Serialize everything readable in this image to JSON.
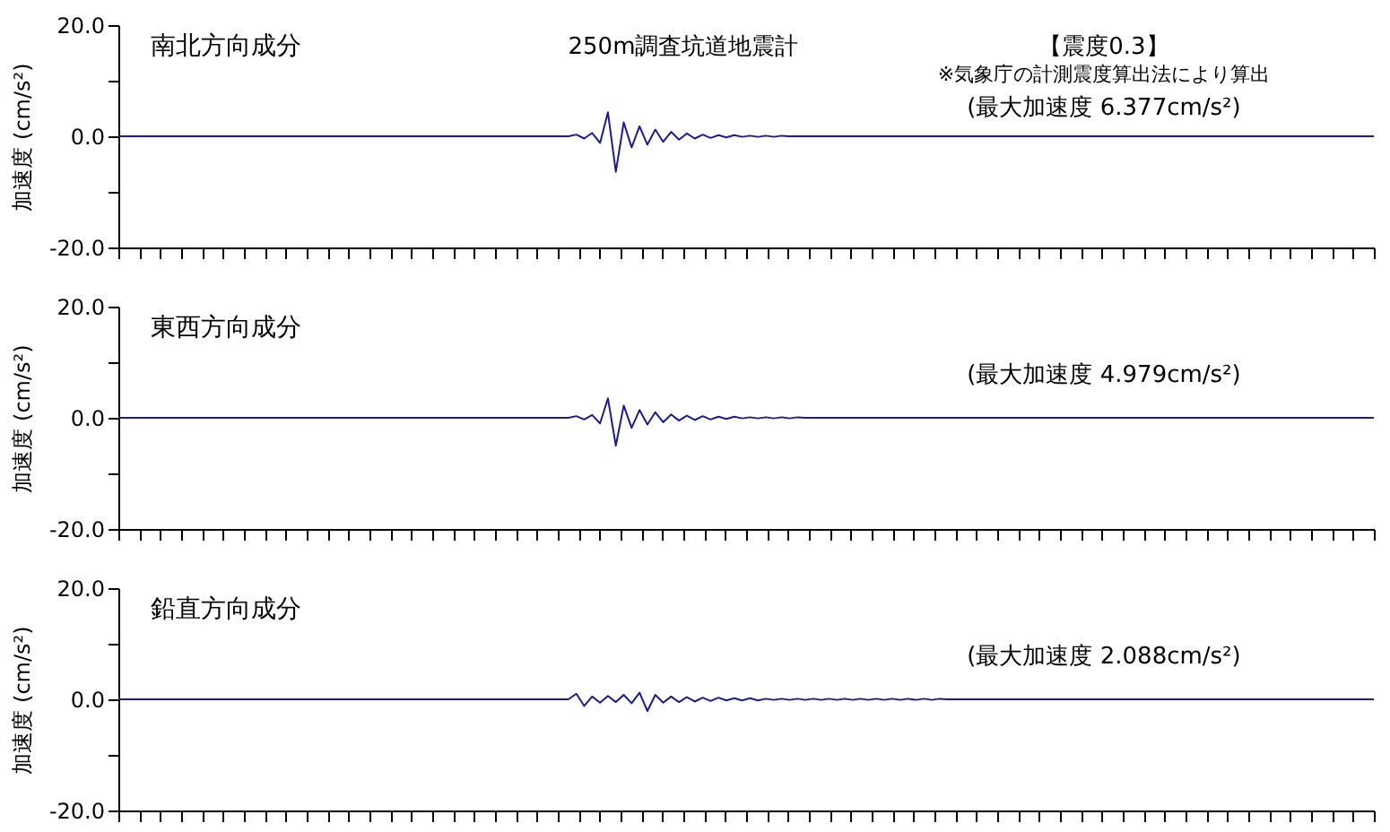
{
  "chart_data": [
    {
      "type": "line",
      "title": "南北方向成分",
      "ylabel": "加速度 (cm/s²)",
      "ylim": [
        -20,
        20
      ],
      "yticks": [
        {
          "value": -20,
          "label": "-20.0"
        },
        {
          "value": -10,
          "label": null
        },
        {
          "value": 0,
          "label": "0.0"
        },
        {
          "value": 10,
          "label": null
        },
        {
          "value": 20,
          "label": "20.0"
        }
      ],
      "tick_labels": "y",
      "grid": false,
      "annotations": [
        "250m調査坑道地震計",
        "【震度0.3】",
        "※気象庁の計測震度算出法により算出",
        "(最大加速度 6.377cm/s²)"
      ],
      "categories": [
        null,
        null,
        null,
        null,
        null,
        null,
        null,
        null,
        null,
        null,
        null,
        null,
        null,
        null,
        null,
        null,
        null,
        null,
        null,
        null,
        null,
        null,
        null,
        null,
        null,
        null,
        null,
        null,
        null,
        null,
        null,
        null,
        null,
        null,
        null,
        null,
        null,
        null,
        null,
        null,
        null,
        null,
        null,
        null,
        null,
        null,
        null,
        null,
        null,
        null,
        null,
        null,
        null,
        null,
        null,
        null,
        null,
        null,
        null,
        null,
        null,
        null,
        null,
        null,
        null,
        null,
        null,
        null,
        null,
        null,
        null,
        null,
        null,
        null,
        null,
        null,
        null,
        null,
        null,
        null,
        null,
        null,
        null,
        null,
        null,
        null,
        null,
        null,
        null,
        null,
        null,
        null,
        null,
        null,
        null,
        null,
        null,
        null,
        null,
        null,
        null,
        null,
        null,
        null,
        null,
        null,
        null,
        null,
        null,
        null,
        null,
        null,
        null,
        null,
        null,
        null,
        null,
        null,
        null,
        null,
        null,
        null,
        null,
        null,
        null,
        null,
        null,
        null,
        null,
        null,
        null,
        null,
        null,
        null,
        null,
        null,
        null,
        null,
        null,
        null,
        null,
        null,
        null,
        null,
        null,
        null,
        null,
        null,
        null,
        null,
        null,
        null,
        null,
        null,
        null,
        null,
        null,
        null,
        null,
        null
      ],
      "series": [
        {
          "color": "#1c1c8c",
          "values": [
            0,
            0,
            0,
            0,
            0,
            0,
            0,
            0,
            0,
            0,
            0,
            0,
            0,
            0,
            0,
            0,
            0,
            0,
            0,
            0,
            0,
            0,
            0,
            0,
            0,
            0,
            0,
            0,
            0,
            0,
            0,
            0,
            0,
            0,
            0,
            0,
            0,
            0,
            0,
            0,
            0,
            0,
            0,
            0,
            0,
            0,
            0,
            0,
            0,
            0,
            0,
            0,
            0,
            0,
            0,
            0,
            0,
            0,
            0.3,
            -0.4,
            0.6,
            -1.2,
            4.3,
            -6.4,
            2.5,
            -2,
            1.8,
            -1.5,
            1.2,
            -1,
            0.8,
            -0.6,
            0.5,
            -0.4,
            0.3,
            -0.3,
            0.2,
            -0.2,
            0.2,
            -0.1,
            0.1,
            -0.1,
            0.1,
            -0.1,
            0.1,
            0,
            0,
            0,
            0,
            0,
            0,
            0,
            0,
            0,
            0,
            0,
            0,
            0,
            0,
            0,
            0,
            0,
            0,
            0,
            0,
            0,
            0,
            0,
            0,
            0,
            0,
            0,
            0,
            0,
            0,
            0,
            0,
            0,
            0,
            0,
            0,
            0,
            0,
            0,
            0,
            0,
            0,
            0,
            0,
            0,
            0,
            0,
            0,
            0,
            0,
            0,
            0,
            0,
            0,
            0,
            0,
            0,
            0,
            0,
            0,
            0,
            0,
            0,
            0,
            0,
            0,
            0,
            0,
            0,
            0,
            0,
            0,
            0,
            0,
            0
          ]
        }
      ]
    },
    {
      "type": "line",
      "title": "東西方向成分",
      "ylabel": "加速度 (cm/s²)",
      "ylim": [
        -20,
        20
      ],
      "yticks": [
        {
          "value": -20,
          "label": "-20.0"
        },
        {
          "value": -10,
          "label": null
        },
        {
          "value": 0,
          "label": "0.0"
        },
        {
          "value": 10,
          "label": null
        },
        {
          "value": 20,
          "label": "20.0"
        }
      ],
      "tick_labels": "y",
      "grid": false,
      "annotations": [
        "(最大加速度 4.979cm/s²)"
      ],
      "categories": [
        null,
        null,
        null,
        null,
        null,
        null,
        null,
        null,
        null,
        null,
        null,
        null,
        null,
        null,
        null,
        null,
        null,
        null,
        null,
        null,
        null,
        null,
        null,
        null,
        null,
        null,
        null,
        null,
        null,
        null,
        null,
        null,
        null,
        null,
        null,
        null,
        null,
        null,
        null,
        null,
        null,
        null,
        null,
        null,
        null,
        null,
        null,
        null,
        null,
        null,
        null,
        null,
        null,
        null,
        null,
        null,
        null,
        null,
        null,
        null,
        null,
        null,
        null,
        null,
        null,
        null,
        null,
        null,
        null,
        null,
        null,
        null,
        null,
        null,
        null,
        null,
        null,
        null,
        null,
        null,
        null,
        null,
        null,
        null,
        null,
        null,
        null,
        null,
        null,
        null,
        null,
        null,
        null,
        null,
        null,
        null,
        null,
        null,
        null,
        null,
        null,
        null,
        null,
        null,
        null,
        null,
        null,
        null,
        null,
        null,
        null,
        null,
        null,
        null,
        null,
        null,
        null,
        null,
        null,
        null,
        null,
        null,
        null,
        null,
        null,
        null,
        null,
        null,
        null,
        null,
        null,
        null,
        null,
        null,
        null,
        null,
        null,
        null,
        null,
        null,
        null,
        null,
        null,
        null,
        null,
        null,
        null,
        null,
        null,
        null,
        null,
        null,
        null,
        null,
        null,
        null,
        null,
        null,
        null,
        null
      ],
      "series": [
        {
          "color": "#1c1c8c",
          "values": [
            0,
            0,
            0,
            0,
            0,
            0,
            0,
            0,
            0,
            0,
            0,
            0,
            0,
            0,
            0,
            0,
            0,
            0,
            0,
            0,
            0,
            0,
            0,
            0,
            0,
            0,
            0,
            0,
            0,
            0,
            0,
            0,
            0,
            0,
            0,
            0,
            0,
            0,
            0,
            0,
            0,
            0,
            0,
            0,
            0,
            0,
            0,
            0,
            0,
            0,
            0,
            0,
            0,
            0,
            0,
            0,
            0,
            0,
            0.3,
            -0.3,
            0.5,
            -1,
            3.5,
            -5,
            2.2,
            -1.8,
            1.4,
            -1.2,
            1,
            -0.8,
            0.6,
            -0.5,
            0.4,
            -0.4,
            0.3,
            -0.3,
            0.2,
            -0.2,
            0.2,
            -0.1,
            0.1,
            -0.1,
            0.1,
            -0.1,
            0.1,
            -0.1,
            0.1,
            0,
            0,
            0,
            0,
            0,
            0,
            0,
            0,
            0,
            0,
            0,
            0,
            0,
            0,
            0,
            0,
            0,
            0,
            0,
            0,
            0,
            0,
            0,
            0,
            0,
            0,
            0,
            0,
            0,
            0,
            0,
            0,
            0,
            0,
            0,
            0,
            0,
            0,
            0,
            0,
            0,
            0,
            0,
            0,
            0,
            0,
            0,
            0,
            0,
            0,
            0,
            0,
            0,
            0,
            0,
            0,
            0,
            0,
            0,
            0,
            0,
            0,
            0,
            0,
            0,
            0,
            0,
            0,
            0,
            0,
            0,
            0,
            0
          ]
        }
      ]
    },
    {
      "type": "line",
      "title": "鉛直方向成分",
      "ylabel": "加速度 (cm/s²)",
      "ylim": [
        -20,
        20
      ],
      "yticks": [
        {
          "value": -20,
          "label": "-20.0"
        },
        {
          "value": -10,
          "label": null
        },
        {
          "value": 0,
          "label": "0.0"
        },
        {
          "value": 10,
          "label": null
        },
        {
          "value": 20,
          "label": "20.0"
        }
      ],
      "tick_labels": "y",
      "grid": false,
      "annotations": [
        "(最大加速度 2.088cm/s²)"
      ],
      "categories": [
        null,
        null,
        null,
        null,
        null,
        null,
        null,
        null,
        null,
        null,
        null,
        null,
        null,
        null,
        null,
        null,
        null,
        null,
        null,
        null,
        null,
        null,
        null,
        null,
        null,
        null,
        null,
        null,
        null,
        null,
        null,
        null,
        null,
        null,
        null,
        null,
        null,
        null,
        null,
        null,
        null,
        null,
        null,
        null,
        null,
        null,
        null,
        null,
        null,
        null,
        null,
        null,
        null,
        null,
        null,
        null,
        null,
        null,
        null,
        null,
        null,
        null,
        null,
        null,
        null,
        null,
        null,
        null,
        null,
        null,
        null,
        null,
        null,
        null,
        null,
        null,
        null,
        null,
        null,
        null,
        null,
        null,
        null,
        null,
        null,
        null,
        null,
        null,
        null,
        null,
        null,
        null,
        null,
        null,
        null,
        null,
        null,
        null,
        null,
        null,
        null,
        null,
        null,
        null,
        null,
        null,
        null,
        null,
        null,
        null,
        null,
        null,
        null,
        null,
        null,
        null,
        null,
        null,
        null,
        null,
        null,
        null,
        null,
        null,
        null,
        null,
        null,
        null,
        null,
        null,
        null,
        null,
        null,
        null,
        null,
        null,
        null,
        null,
        null,
        null,
        null,
        null,
        null,
        null,
        null,
        null,
        null,
        null,
        null,
        null,
        null,
        null,
        null,
        null,
        null,
        null,
        null,
        null,
        null,
        null
      ],
      "series": [
        {
          "color": "#1c1c8c",
          "values": [
            0,
            0,
            0,
            0,
            0,
            0,
            0,
            0,
            0,
            0,
            0,
            0,
            0,
            0,
            0,
            0,
            0,
            0,
            0,
            0,
            0,
            0,
            0,
            0,
            0,
            0,
            0,
            0,
            0,
            0,
            0,
            0,
            0,
            0,
            0,
            0,
            0,
            0,
            0,
            0,
            0,
            0,
            0,
            0,
            0,
            0,
            0,
            0,
            0,
            0,
            0,
            0,
            0,
            0,
            0,
            0,
            0,
            0,
            1,
            -1.2,
            0.5,
            -0.6,
            0.6,
            -0.5,
            0.8,
            -0.7,
            1.2,
            -2.1,
            0.8,
            -0.6,
            0.5,
            -0.5,
            0.4,
            -0.4,
            0.3,
            -0.3,
            0.3,
            -0.2,
            0.2,
            -0.2,
            0.2,
            -0.2,
            0.1,
            -0.1,
            0.1,
            -0.1,
            0.1,
            -0.1,
            0.1,
            -0.1,
            0.1,
            -0.1,
            0.1,
            -0.1,
            0.1,
            -0.1,
            0.1,
            -0.1,
            0.1,
            -0.1,
            0.1,
            -0.1,
            0.1,
            -0.1,
            0.1,
            0,
            0,
            0,
            0,
            0,
            0,
            0,
            0,
            0,
            0,
            0,
            0,
            0,
            0,
            0,
            0,
            0,
            0,
            0,
            0,
            0,
            0,
            0,
            0,
            0,
            0,
            0,
            0,
            0,
            0,
            0,
            0,
            0,
            0,
            0,
            0,
            0,
            0,
            0,
            0,
            0,
            0,
            0,
            0,
            0,
            0,
            0,
            0,
            0,
            0,
            0,
            0,
            0,
            0,
            0
          ]
        }
      ]
    }
  ]
}
